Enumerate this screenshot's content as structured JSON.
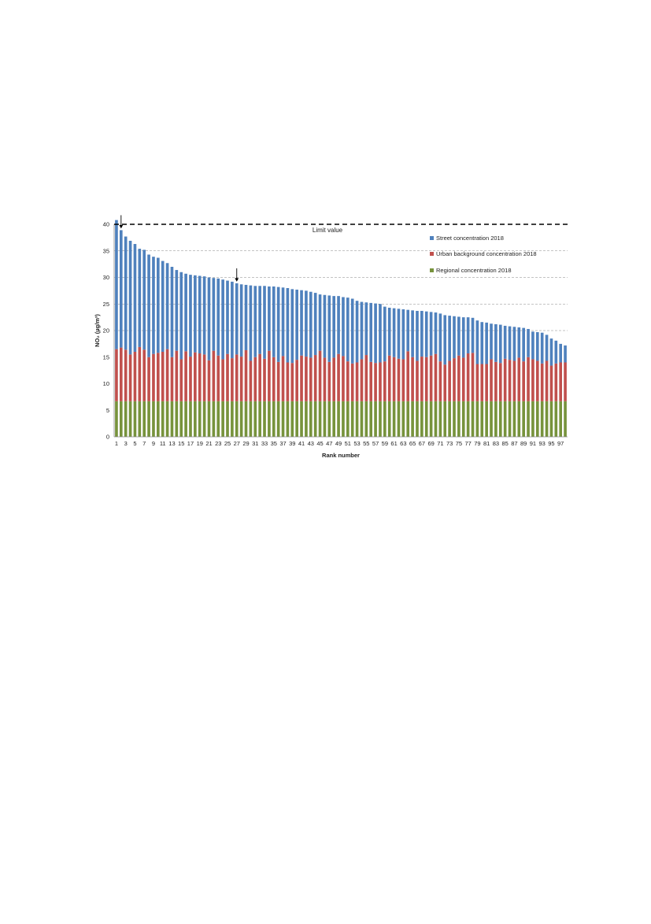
{
  "chart_data": {
    "type": "bar",
    "stacked": true,
    "xlabel": "Rank number",
    "ylabel": "NO₂ (µg/m³)",
    "ylim": [
      0,
      40
    ],
    "yticks": [
      0,
      5,
      10,
      15,
      20,
      25,
      30,
      35,
      40
    ],
    "xticks": [
      1,
      3,
      5,
      7,
      9,
      11,
      13,
      15,
      17,
      19,
      21,
      23,
      25,
      27,
      29,
      31,
      33,
      35,
      37,
      39,
      41,
      43,
      45,
      47,
      49,
      51,
      53,
      55,
      57,
      59,
      61,
      63,
      65,
      67,
      69,
      71,
      73,
      75,
      77,
      79,
      81,
      83,
      85,
      87,
      89,
      91,
      93,
      95,
      97
    ],
    "grid": "dashed horizontal at 20, 25, 30, 35",
    "legend_position": "top-right",
    "limit_line": {
      "value": 40,
      "label": "Limit value"
    },
    "arrows_at_rank": [
      2,
      27
    ],
    "categories": [
      1,
      2,
      3,
      4,
      5,
      6,
      7,
      8,
      9,
      10,
      11,
      12,
      13,
      14,
      15,
      16,
      17,
      18,
      19,
      20,
      21,
      22,
      23,
      24,
      25,
      26,
      27,
      28,
      29,
      30,
      31,
      32,
      33,
      34,
      35,
      36,
      37,
      38,
      39,
      40,
      41,
      42,
      43,
      44,
      45,
      46,
      47,
      48,
      49,
      50,
      51,
      52,
      53,
      54,
      55,
      56,
      57,
      58,
      59,
      60,
      61,
      62,
      63,
      64,
      65,
      66,
      67,
      68,
      69,
      70,
      71,
      72,
      73,
      74,
      75,
      76,
      77,
      78,
      79,
      80,
      81,
      82,
      83,
      84,
      85,
      86,
      87,
      88,
      89,
      90,
      91,
      92,
      93,
      94,
      95,
      96,
      97,
      98
    ],
    "series": [
      {
        "name": "Street concentration 2018",
        "color": "#4f81bd",
        "total_values": [
          40.8,
          38.9,
          37.7,
          36.9,
          36.3,
          35.4,
          35.2,
          34.3,
          33.9,
          33.7,
          33.1,
          32.7,
          32.0,
          31.4,
          31.0,
          30.7,
          30.5,
          30.4,
          30.3,
          30.2,
          30.0,
          29.9,
          29.8,
          29.6,
          29.4,
          29.2,
          28.9,
          28.7,
          28.6,
          28.5,
          28.4,
          28.4,
          28.4,
          28.3,
          28.3,
          28.2,
          28.1,
          28.0,
          27.8,
          27.7,
          27.6,
          27.5,
          27.3,
          27.1,
          26.8,
          26.7,
          26.6,
          26.5,
          26.5,
          26.3,
          26.2,
          26.0,
          25.6,
          25.4,
          25.3,
          25.2,
          25.1,
          25.0,
          24.5,
          24.3,
          24.2,
          24.1,
          24.0,
          23.9,
          23.8,
          23.7,
          23.7,
          23.6,
          23.5,
          23.4,
          23.2,
          22.9,
          22.8,
          22.7,
          22.6,
          22.5,
          22.5,
          22.4,
          21.9,
          21.6,
          21.5,
          21.3,
          21.2,
          21.1,
          20.9,
          20.8,
          20.7,
          20.6,
          20.5,
          20.3,
          19.8,
          19.7,
          19.6,
          19.2,
          18.5,
          18.1,
          17.5,
          17.2
        ]
      },
      {
        "name": "Urban background concentration 2018",
        "color": "#c0504d",
        "total_values": [
          16.5,
          16.8,
          16.4,
          15.5,
          16.0,
          16.9,
          16.4,
          15.0,
          15.6,
          15.8,
          16.0,
          16.5,
          15.0,
          16.2,
          14.6,
          16.1,
          15.1,
          15.9,
          15.7,
          15.5,
          14.4,
          16.2,
          15.3,
          14.6,
          15.6,
          14.8,
          15.5,
          15.1,
          16.3,
          14.3,
          15.0,
          15.6,
          14.7,
          16.2,
          15.0,
          14.1,
          15.2,
          14.0,
          13.9,
          14.5,
          15.3,
          15.1,
          14.9,
          15.4,
          16.2,
          14.9,
          14.1,
          14.9,
          15.6,
          15.2,
          14.2,
          13.8,
          14.0,
          14.6,
          15.4,
          14.1,
          13.9,
          14.0,
          14.2,
          15.3,
          15.0,
          14.7,
          14.6,
          16.1,
          15.0,
          14.3,
          15.1,
          15.0,
          15.3,
          15.6,
          14.2,
          13.6,
          14.3,
          14.8,
          15.3,
          14.9,
          15.7,
          15.8,
          13.7,
          13.7,
          13.7,
          14.6,
          14.1,
          13.9,
          14.7,
          14.5,
          14.3,
          14.9,
          14.2,
          15.0,
          14.6,
          14.3,
          13.8,
          14.3,
          13.4,
          13.8,
          14.0,
          14.0
        ]
      },
      {
        "name": "Regional concentration 2018",
        "color": "#77933c",
        "total_values": [
          6.7,
          6.7,
          6.7,
          6.7,
          6.7,
          6.7,
          6.7,
          6.7,
          6.7,
          6.7,
          6.7,
          6.7,
          6.7,
          6.7,
          6.7,
          6.7,
          6.7,
          6.7,
          6.7,
          6.7,
          6.7,
          6.7,
          6.7,
          6.7,
          6.7,
          6.7,
          6.7,
          6.7,
          6.7,
          6.7,
          6.7,
          6.7,
          6.7,
          6.7,
          6.7,
          6.7,
          6.7,
          6.7,
          6.7,
          6.7,
          6.7,
          6.7,
          6.7,
          6.7,
          6.7,
          6.7,
          6.7,
          6.7,
          6.7,
          6.7,
          6.7,
          6.7,
          6.7,
          6.7,
          6.7,
          6.7,
          6.7,
          6.7,
          6.7,
          6.7,
          6.7,
          6.7,
          6.7,
          6.7,
          6.7,
          6.7,
          6.7,
          6.7,
          6.7,
          6.7,
          6.7,
          6.7,
          6.7,
          6.7,
          6.7,
          6.7,
          6.7,
          6.7,
          6.7,
          6.7,
          6.7,
          6.7,
          6.7,
          6.7,
          6.7,
          6.7,
          6.7,
          6.7,
          6.7,
          6.7,
          6.7,
          6.7,
          6.7,
          6.7,
          6.7,
          6.7,
          6.7,
          6.7
        ]
      }
    ]
  }
}
